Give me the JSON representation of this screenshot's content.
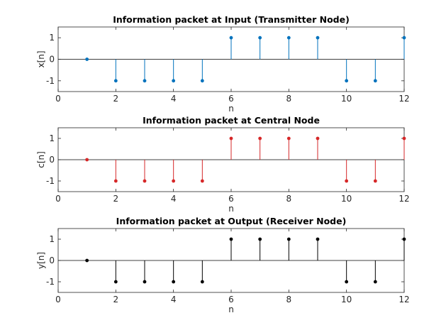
{
  "chart_data": [
    {
      "type": "stem",
      "title": "Information packet at Input (Transmitter Node)",
      "xlabel": "n",
      "ylabel": "x[n]",
      "xlim": [
        0,
        12
      ],
      "ylim": [
        -1.5,
        1.5
      ],
      "xticks": [
        "0",
        "2",
        "4",
        "6",
        "8",
        "10",
        "12"
      ],
      "yticks": [
        "-1",
        "0",
        "1"
      ],
      "color": "#0072BD",
      "x": [
        1,
        2,
        3,
        4,
        5,
        6,
        7,
        8,
        9,
        10,
        11,
        12
      ],
      "y": [
        0,
        -1,
        -1,
        -1,
        -1,
        1,
        1,
        1,
        1,
        -1,
        -1,
        1
      ]
    },
    {
      "type": "stem",
      "title": "Information packet at Central Node",
      "xlabel": "n",
      "ylabel": "c[n]",
      "xlim": [
        0,
        12
      ],
      "ylim": [
        -1.5,
        1.5
      ],
      "xticks": [
        "0",
        "2",
        "4",
        "6",
        "8",
        "10",
        "12"
      ],
      "yticks": [
        "-1",
        "0",
        "1"
      ],
      "color": "#D62728",
      "x": [
        1,
        2,
        3,
        4,
        5,
        6,
        7,
        8,
        9,
        10,
        11,
        12
      ],
      "y": [
        0,
        -1,
        -1,
        -1,
        -1,
        1,
        1,
        1,
        1,
        -1,
        -1,
        1
      ]
    },
    {
      "type": "stem",
      "title": "Information packet at Output (Receiver Node)",
      "xlabel": "n",
      "ylabel": "y[n]",
      "xlim": [
        0,
        12
      ],
      "ylim": [
        -1.5,
        1.5
      ],
      "xticks": [
        "0",
        "2",
        "4",
        "6",
        "8",
        "10",
        "12"
      ],
      "yticks": [
        "-1",
        "0",
        "1"
      ],
      "color": "#000000",
      "x": [
        1,
        2,
        3,
        4,
        5,
        6,
        7,
        8,
        9,
        10,
        11,
        12
      ],
      "y": [
        0,
        -1,
        -1,
        -1,
        -1,
        1,
        1,
        1,
        1,
        -1,
        -1,
        1
      ]
    }
  ]
}
